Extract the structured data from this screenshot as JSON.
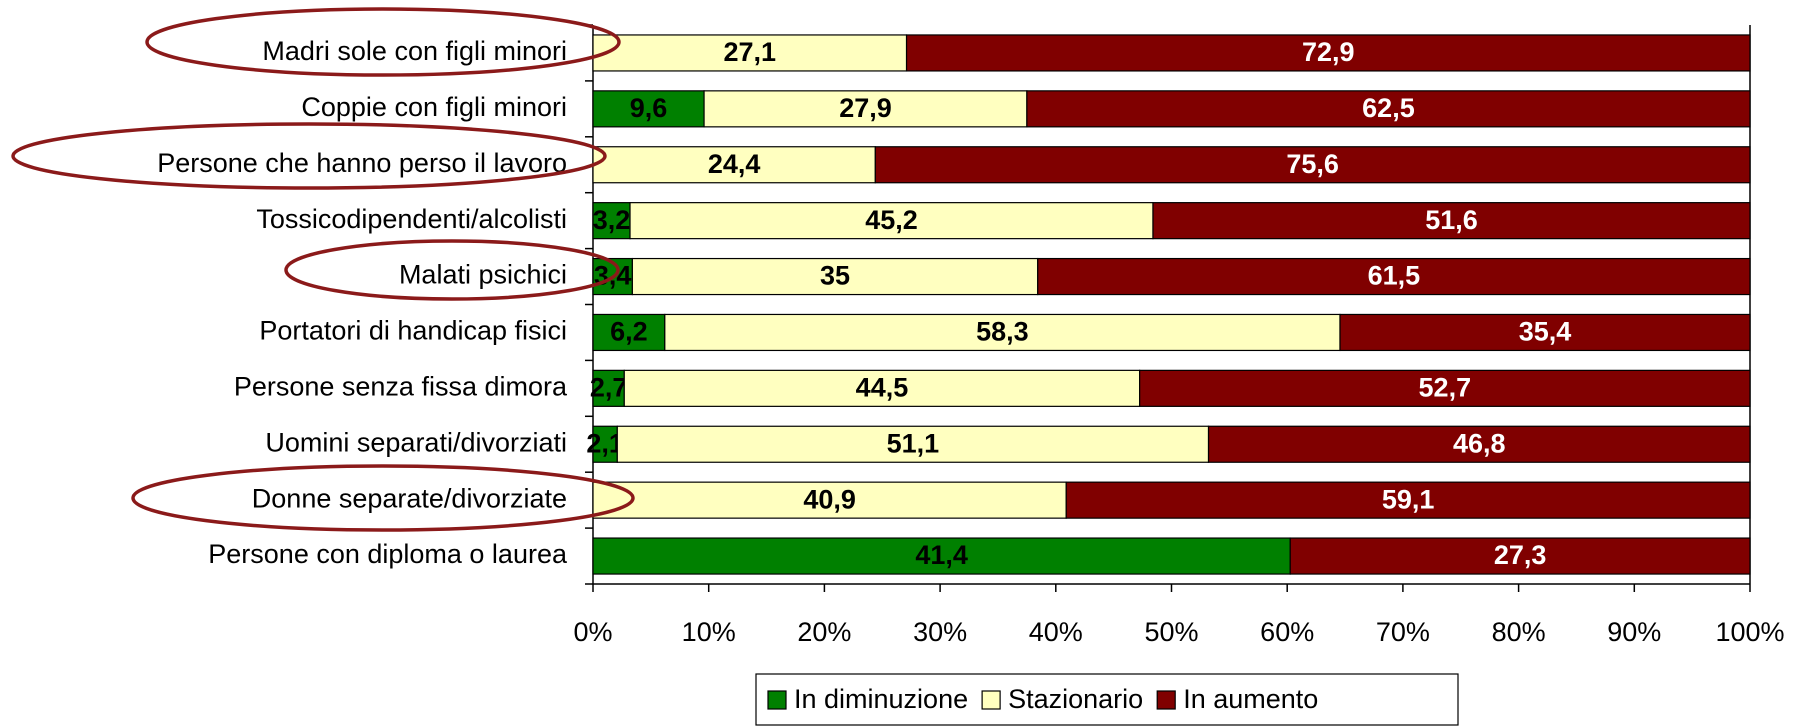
{
  "chart_data": {
    "type": "bar",
    "orientation": "horizontal",
    "stacked": "percent",
    "categories": [
      "Madri sole con figli minori",
      "Coppie con figli minori",
      "Persone che hanno perso il lavoro",
      "Tossicodipendenti/alcolisti",
      "Malati psichici",
      "Portatori di handicap fisici",
      "Persone senza fissa dimora",
      "Uomini separati/divorziati",
      "Donne separate/divorziate",
      "Persone con diploma o laurea"
    ],
    "series": [
      {
        "name": "In diminuzione",
        "color": "#008000",
        "label_color": "#000000",
        "values": [
          null,
          9.6,
          null,
          3.2,
          3.4,
          6.2,
          2.7,
          2.1,
          null,
          41.4
        ],
        "value_labels": [
          null,
          "9,6",
          null,
          "3,2",
          "3,4",
          "6,2",
          "2,7",
          "2,1",
          null,
          "41,4"
        ]
      },
      {
        "name": "Stazionario",
        "color": "#ffffc0",
        "label_color": "#000000",
        "values": [
          27.1,
          27.9,
          24.4,
          45.2,
          35,
          58.3,
          44.5,
          51.1,
          40.9,
          null
        ],
        "value_labels": [
          "27,1",
          "27,9",
          "24,4",
          "45,2",
          "35",
          "58,3",
          "44,5",
          "51,1",
          "40,9",
          null
        ]
      },
      {
        "name": "In aumento",
        "color": "#800000",
        "label_color": "#ffffff",
        "values": [
          72.9,
          62.5,
          75.6,
          51.6,
          61.5,
          35.4,
          52.7,
          46.8,
          59.1,
          27.3
        ],
        "value_labels": [
          "72,9",
          "62,5",
          "75,6",
          "51,6",
          "61,5",
          "35,4",
          "52,7",
          "46,8",
          "59,1",
          "27,3"
        ]
      }
    ],
    "xlim": [
      0,
      100
    ],
    "xticks": [
      {
        "value": 0,
        "label": "0%"
      },
      {
        "value": 10,
        "label": "10%"
      },
      {
        "value": 20,
        "label": "20%"
      },
      {
        "value": 30,
        "label": "30%"
      },
      {
        "value": 40,
        "label": "40%"
      },
      {
        "value": 50,
        "label": "50%"
      },
      {
        "value": 60,
        "label": "60%"
      },
      {
        "value": 70,
        "label": "70%"
      },
      {
        "value": 80,
        "label": "80%"
      },
      {
        "value": 90,
        "label": "90%"
      },
      {
        "value": 100,
        "label": "100%"
      }
    ],
    "legend": "bottom"
  }
}
